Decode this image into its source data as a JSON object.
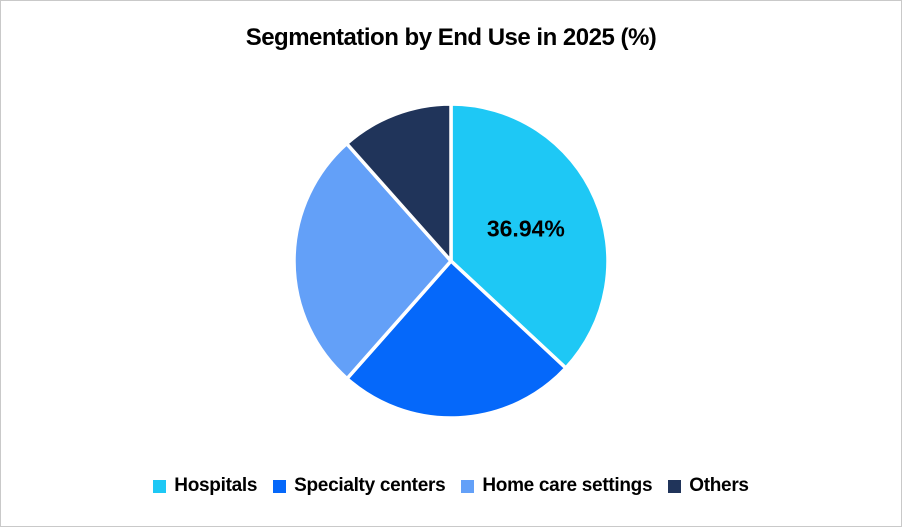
{
  "chart": {
    "title": "Segmentation by End Use in 2025 (%)"
  },
  "chart_data": {
    "type": "pie",
    "title": "Segmentation by End Use in 2025 (%)",
    "start_angle_deg": 0,
    "direction": "clockwise",
    "legend_position": "bottom",
    "background_color": "#ffffff",
    "separator_color": "#ffffff",
    "label_color": "#000000",
    "slices": [
      {
        "label": "Hospitals",
        "value": 36.94,
        "color": "#1EC8F5",
        "data_label": "36.94%"
      },
      {
        "label": "Specialty centers",
        "value": 24.58,
        "color": "#0568FA",
        "data_label": null
      },
      {
        "label": "Home care settings",
        "value": 26.92,
        "color": "#63A0F8",
        "data_label": null
      },
      {
        "label": "Others",
        "value": 11.56,
        "color": "#20345A",
        "data_label": null
      }
    ]
  }
}
